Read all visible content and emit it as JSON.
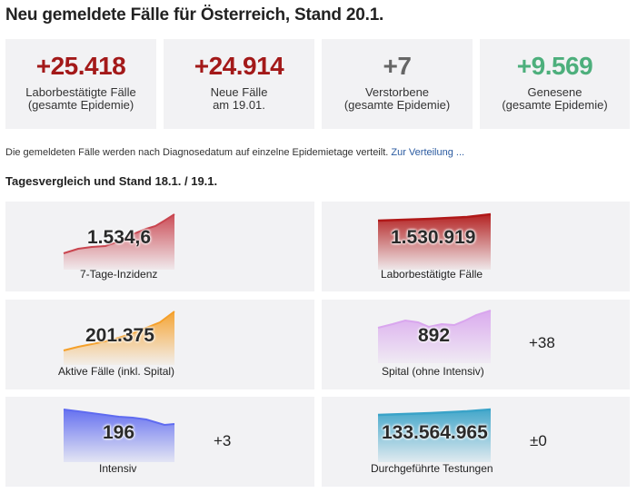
{
  "title": "Neu gemeldete Fälle für Österreich, Stand 20.1.",
  "stats": [
    {
      "value": "+25.418",
      "label1": "Laborbestätigte Fälle",
      "label2": "(gesamte Epidemie)",
      "color": "#a31919"
    },
    {
      "value": "+24.914",
      "label1": "Neue Fälle",
      "label2": "am 19.01.",
      "color": "#a31919"
    },
    {
      "value": "+7",
      "label1": "Verstorbene",
      "label2": "(gesamte Epidemie)",
      "color": "#666666"
    },
    {
      "value": "+9.569",
      "label1": "Genesene",
      "label2": "(gesamte Epidemie)",
      "color": "#4daf7c"
    }
  ],
  "note": {
    "text": "Die gemeldeten Fälle werden nach Diagnosedatum auf einzelne Epidemietage verteilt. ",
    "link": "Zur Verteilung ..."
  },
  "subtitle": "Tagesvergleich und Stand 18.1. / 19.1.",
  "cards": [
    {
      "value": "1.534,6",
      "label": "7-Tage-Inzidenz",
      "delta": "",
      "color": "#c9454f",
      "icon": "sparkline-incidence"
    },
    {
      "value": "1.530.919",
      "label": "Laborbestätigte Fälle",
      "delta": "",
      "color": "#b01818",
      "icon": "sparkline-lab-cases"
    },
    {
      "value": "201.375",
      "label": "Aktive Fälle (inkl. Spital)",
      "delta": "",
      "color": "#f5a02a",
      "icon": "sparkline-active"
    },
    {
      "value": "892",
      "label": "Spital (ohne Intensiv)",
      "delta": "+38",
      "color": "#d9a6ee",
      "icon": "sparkline-hospital"
    },
    {
      "value": "196",
      "label": "Intensiv",
      "delta": "+3",
      "color": "#5f6bf0",
      "icon": "sparkline-icu"
    },
    {
      "value": "133.564.965",
      "label": "Durchgeführte Testungen",
      "delta": "±0",
      "color": "#3aa3c8",
      "icon": "sparkline-tests"
    }
  ]
}
